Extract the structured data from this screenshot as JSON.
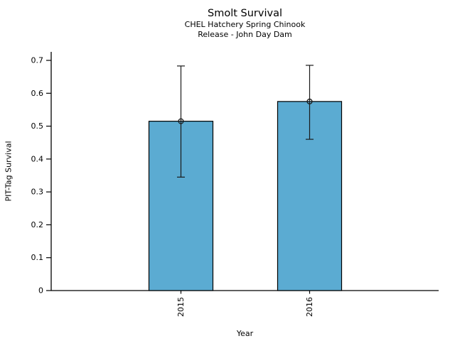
{
  "chart_data": {
    "type": "bar",
    "title": "Smolt Survival",
    "subtitle1": "CHEL Hatchery Spring Chinook",
    "subtitle2": "Release - John Day Dam",
    "xlabel": "Year",
    "ylabel": "PIT-Tag Survival",
    "categories": [
      "2015",
      "2016"
    ],
    "values": [
      0.515,
      0.575
    ],
    "error_low": [
      0.345,
      0.46
    ],
    "error_high": [
      0.683,
      0.685
    ],
    "ylim": [
      0,
      0.725
    ],
    "yticks": [
      0,
      0.1,
      0.2,
      0.3,
      0.4,
      0.5,
      0.6,
      0.7
    ],
    "ytick_labels": [
      "0",
      "0.1",
      "0.2",
      "0.3",
      "0.4",
      "0.5",
      "0.6",
      "0.7"
    ],
    "grid": false,
    "legend": null,
    "marker": "open-circle",
    "colors": {
      "bar_fill": "#5babd2",
      "bar_edge": "#000000",
      "error_bar": "#1a1a1a",
      "axis": "#000000",
      "text": "#000000"
    }
  }
}
